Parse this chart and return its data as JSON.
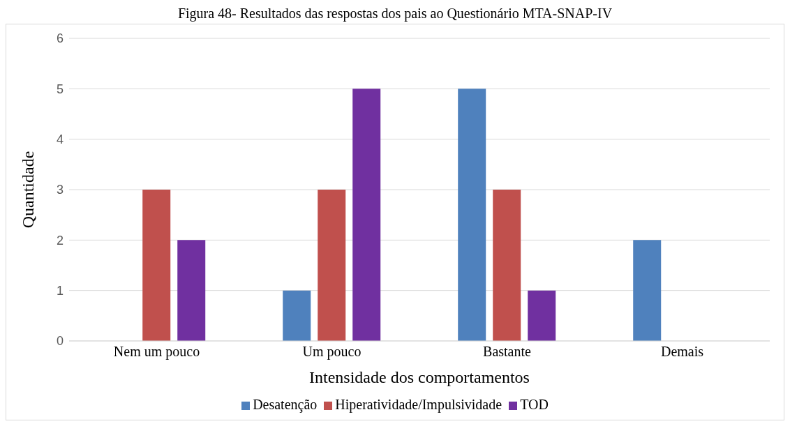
{
  "chart_data": {
    "type": "bar",
    "title": "Figura 48- Resultados das respostas dos pais ao Questionário MTA-SNAP-IV",
    "xlabel": "Intensidade dos comportamentos",
    "ylabel": "Quantidade",
    "categories": [
      "Nem um pouco",
      "Um pouco",
      "Bastante",
      "Demais"
    ],
    "series": [
      {
        "name": "Desatenção",
        "color": "#4f81bd",
        "values": [
          0,
          1,
          5,
          2
        ]
      },
      {
        "name": "Hiperatividade/Impulsividade",
        "color": "#c0504d",
        "values": [
          3,
          3,
          3,
          0
        ]
      },
      {
        "name": "TOD",
        "color": "#7030a0",
        "values": [
          2,
          5,
          1,
          0
        ]
      }
    ],
    "ylim": [
      0,
      6
    ],
    "yticks": [
      0,
      1,
      2,
      3,
      4,
      5,
      6
    ],
    "grid": "y",
    "legend": "bottom"
  }
}
